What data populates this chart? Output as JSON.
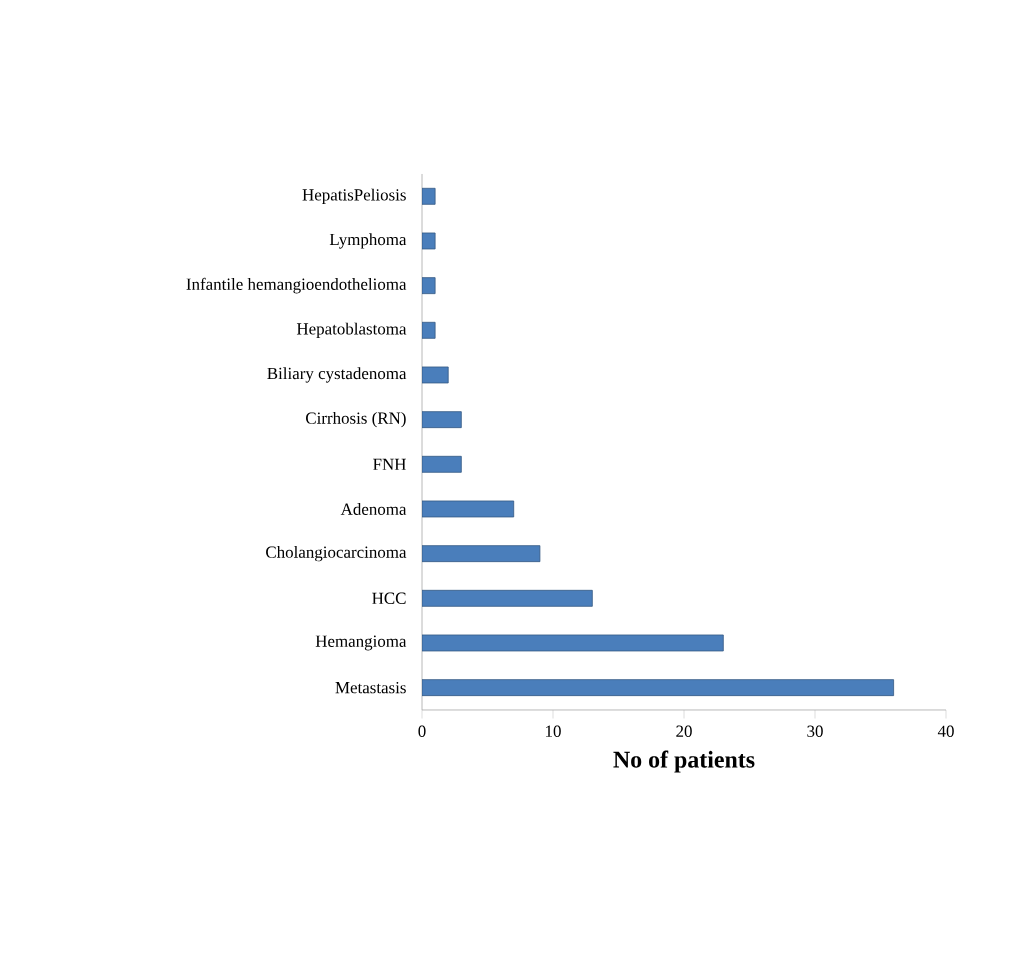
{
  "chart_data": {
    "type": "bar",
    "orientation": "horizontal",
    "categories": [
      "HepatisPeliosis",
      "Lymphoma",
      "Infantile hemangioendothelioma",
      "Hepatoblastoma",
      "Biliary cystadenoma",
      "Cirrhosis (RN)",
      "FNH",
      "Adenoma",
      "Cholangiocarcinoma",
      "HCC",
      "Hemangioma",
      "Metastasis"
    ],
    "values": [
      1,
      1,
      1,
      1,
      2,
      3,
      3,
      7,
      9,
      13,
      23,
      36
    ],
    "color": "#4a7ebb",
    "xlabel": "No of patients",
    "xlim": [
      0,
      40
    ],
    "xticks": [
      0,
      10,
      20,
      30,
      40
    ],
    "grid": false
  }
}
